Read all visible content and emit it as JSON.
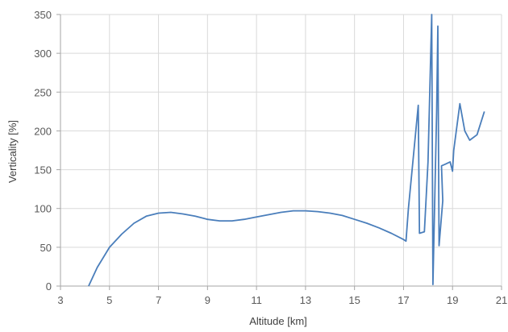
{
  "chart_data": {
    "type": "line",
    "xlabel": "Altitude [km]",
    "ylabel": "Verticality [%]",
    "xlim": [
      3,
      21
    ],
    "ylim": [
      0,
      350
    ],
    "xticks": [
      3,
      5,
      7,
      9,
      11,
      13,
      15,
      17,
      19,
      21
    ],
    "yticks": [
      0,
      50,
      100,
      150,
      200,
      250,
      300,
      350
    ],
    "x_tick_labels": [
      "3",
      "5",
      "7",
      "9",
      "11",
      "13",
      "15",
      "17",
      "19",
      "21"
    ],
    "y_tick_labels": [
      "0",
      "50",
      "100",
      "150",
      "200",
      "250",
      "300",
      "350"
    ],
    "grid": true,
    "line_color": "#4a7ebb",
    "series": [
      {
        "points": [
          [
            4.15,
            0
          ],
          [
            4.5,
            24
          ],
          [
            5.0,
            50
          ],
          [
            5.5,
            67
          ],
          [
            6.0,
            81
          ],
          [
            6.5,
            90
          ],
          [
            7.0,
            94
          ],
          [
            7.5,
            95
          ],
          [
            8.0,
            93
          ],
          [
            8.5,
            90
          ],
          [
            9.0,
            86
          ],
          [
            9.5,
            84
          ],
          [
            10.0,
            84
          ],
          [
            10.5,
            86
          ],
          [
            11.0,
            89
          ],
          [
            11.5,
            92
          ],
          [
            12.0,
            95
          ],
          [
            12.5,
            97
          ],
          [
            13.0,
            97
          ],
          [
            13.5,
            96
          ],
          [
            14.0,
            94
          ],
          [
            14.5,
            91
          ],
          [
            15.0,
            86
          ],
          [
            15.5,
            81
          ],
          [
            16.0,
            75
          ],
          [
            16.5,
            68
          ],
          [
            17.0,
            60
          ],
          [
            17.1,
            58
          ],
          [
            17.2,
            100
          ],
          [
            17.35,
            150
          ],
          [
            17.6,
            233
          ],
          [
            17.65,
            68
          ],
          [
            17.85,
            70
          ],
          [
            18.0,
            160
          ],
          [
            18.15,
            350
          ],
          [
            18.2,
            2
          ],
          [
            18.35,
            225
          ],
          [
            18.4,
            335
          ],
          [
            18.45,
            52
          ],
          [
            18.6,
            110
          ],
          [
            18.55,
            155
          ],
          [
            18.7,
            157
          ],
          [
            18.9,
            160
          ],
          [
            19.0,
            148
          ],
          [
            19.05,
            175
          ],
          [
            19.3,
            235
          ],
          [
            19.5,
            200
          ],
          [
            19.7,
            188
          ],
          [
            20.0,
            195
          ],
          [
            20.3,
            225
          ]
        ]
      }
    ]
  }
}
